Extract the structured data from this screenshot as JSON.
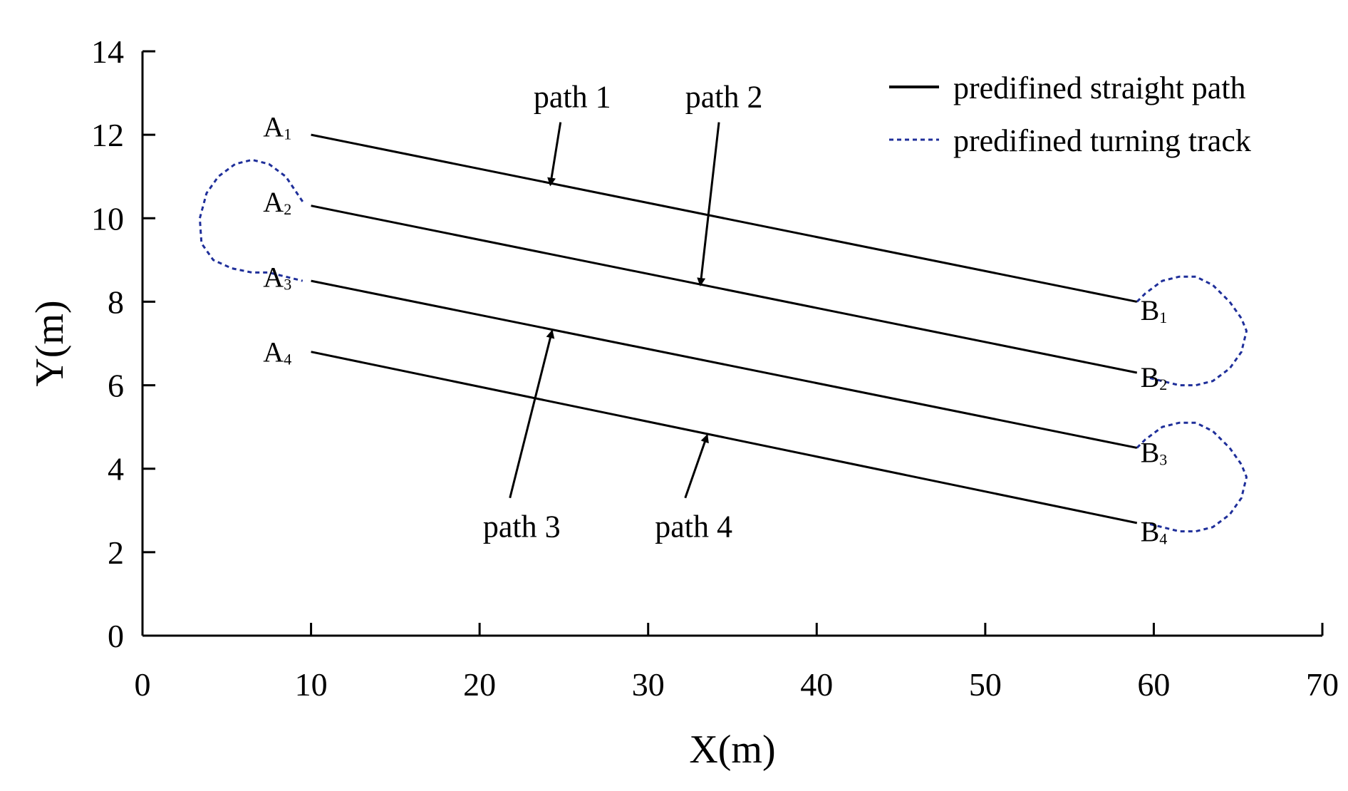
{
  "chart_data": {
    "type": "line",
    "xlabel": "X(m)",
    "ylabel": "Y(m)",
    "xlim": [
      0,
      70
    ],
    "ylim": [
      0,
      14
    ],
    "xticks": [
      "0",
      "10",
      "20",
      "30",
      "40",
      "50",
      "60",
      "70"
    ],
    "yticks": [
      "0",
      "2",
      "4",
      "6",
      "8",
      "10",
      "12",
      "14"
    ],
    "grid": false,
    "legend_position": "top-right",
    "legend": [
      {
        "label": "predifined straight path",
        "style": "solid",
        "color": "#000000"
      },
      {
        "label": "predifined turning track",
        "style": "dotted",
        "color": "#1f2f9a"
      }
    ],
    "series": [
      {
        "name": "path 1",
        "x": [
          10,
          59
        ],
        "y": [
          12.0,
          8.0
        ]
      },
      {
        "name": "path 2",
        "x": [
          10,
          59
        ],
        "y": [
          10.3,
          6.3
        ]
      },
      {
        "name": "path 3",
        "x": [
          10,
          59
        ],
        "y": [
          8.5,
          4.5
        ]
      },
      {
        "name": "path 4",
        "x": [
          10,
          59
        ],
        "y": [
          6.8,
          2.7
        ]
      }
    ],
    "turning_tracks": [
      {
        "x": [
          9.5,
          9,
          8.5,
          7.5,
          6.5,
          5.5,
          4.5,
          3.8,
          3.4,
          3.5,
          4.2,
          5.3,
          6.5,
          7.5,
          8.5,
          9.5
        ],
        "y": [
          10.4,
          10.7,
          11.0,
          11.3,
          11.4,
          11.3,
          11.0,
          10.6,
          10.0,
          9.4,
          9.0,
          8.8,
          8.7,
          8.7,
          8.6,
          8.5
        ]
      },
      {
        "x": [
          59,
          59.5,
          60.5,
          61.5,
          62.5,
          63.5,
          64.5,
          65.2,
          65.5,
          65.2,
          64.5,
          63.5,
          62.5,
          61.5,
          60.5,
          59.5
        ],
        "y": [
          8.0,
          8.2,
          8.5,
          8.6,
          8.6,
          8.4,
          8.0,
          7.6,
          7.3,
          6.8,
          6.4,
          6.1,
          6.0,
          6.0,
          6.1,
          6.2
        ]
      },
      {
        "x": [
          59,
          59.5,
          60.5,
          61.5,
          62.5,
          63.5,
          64.5,
          65.2,
          65.5,
          65.2,
          64.5,
          63.5,
          62.5,
          61.5,
          60.5,
          59.5
        ],
        "y": [
          4.5,
          4.7,
          5.0,
          5.1,
          5.1,
          4.9,
          4.5,
          4.1,
          3.8,
          3.3,
          2.9,
          2.6,
          2.5,
          2.5,
          2.6,
          2.7
        ]
      }
    ],
    "points": [
      {
        "letter": "A",
        "sub": "1",
        "x": 8.0,
        "y": 12.2
      },
      {
        "letter": "A",
        "sub": "2",
        "x": 8.0,
        "y": 10.4
      },
      {
        "letter": "A",
        "sub": "3",
        "x": 8.0,
        "y": 8.6
      },
      {
        "letter": "A",
        "sub": "4",
        "x": 8.0,
        "y": 6.8
      },
      {
        "letter": "B",
        "sub": "1",
        "x": 60.0,
        "y": 7.8
      },
      {
        "letter": "B",
        "sub": "2",
        "x": 60.0,
        "y": 6.2
      },
      {
        "letter": "B",
        "sub": "3",
        "x": 60.0,
        "y": 4.4
      },
      {
        "letter": "B",
        "sub": "4",
        "x": 60.0,
        "y": 2.5
      }
    ],
    "annotations": [
      {
        "text": "path 1",
        "text_x": 25.5,
        "text_y": 12.9,
        "arrow_from": [
          24.8,
          12.3
        ],
        "arrow_to": [
          24.2,
          10.8
        ]
      },
      {
        "text": "path 2",
        "text_x": 34.5,
        "text_y": 12.9,
        "arrow_from": [
          34.2,
          12.3
        ],
        "arrow_to": [
          33.1,
          8.4
        ]
      },
      {
        "text": "path 3",
        "text_x": 22.5,
        "text_y": 2.6,
        "arrow_from": [
          21.8,
          3.3
        ],
        "arrow_to": [
          24.3,
          7.3
        ]
      },
      {
        "text": "path 4",
        "text_x": 32.7,
        "text_y": 2.6,
        "arrow_from": [
          32.2,
          3.3
        ],
        "arrow_to": [
          33.5,
          4.8
        ]
      }
    ]
  }
}
